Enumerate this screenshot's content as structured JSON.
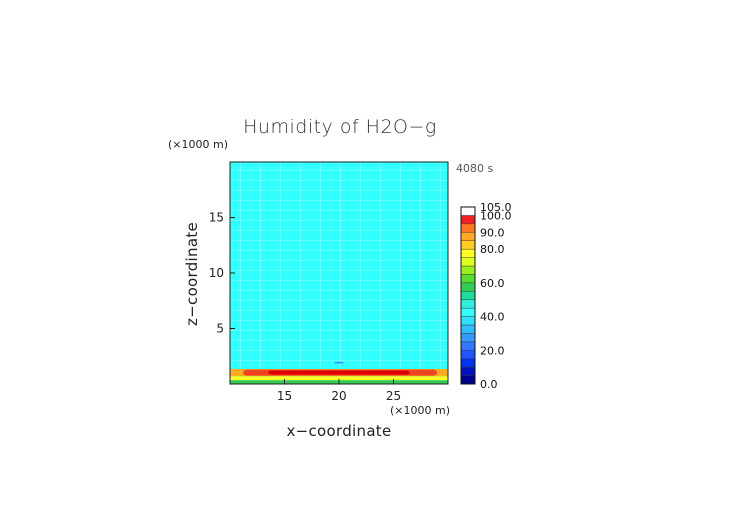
{
  "chart_data": {
    "type": "heatmap",
    "title": "Humidity of H2O−g",
    "timestamp": "4080 s",
    "xlabel": "x−coordinate",
    "ylabel": "z−coordinate",
    "x_unit": "(×1000 m)",
    "y_unit": "(×1000 m)",
    "xlim": [
      10,
      30
    ],
    "ylim": [
      0,
      20
    ],
    "x_ticks": [
      "15",
      "20",
      "25"
    ],
    "x_tick_values": [
      15,
      20,
      25
    ],
    "y_ticks": [
      "5",
      "10",
      "15"
    ],
    "y_tick_values": [
      5,
      10,
      15
    ],
    "background_value": 42,
    "field_bands": [
      {
        "z_bottom": 0.0,
        "z_top": 0.35,
        "x_start": 10,
        "x_end": 30,
        "value": 55,
        "color": "#33cc55"
      },
      {
        "z_bottom": 0.35,
        "z_top": 0.7,
        "x_start": 10,
        "x_end": 30,
        "value": 70,
        "color": "#ffff22"
      },
      {
        "z_bottom": 0.7,
        "z_top": 1.35,
        "x_start": 10,
        "x_end": 30,
        "value": 82,
        "color": "#ffaa22"
      },
      {
        "z_bottom": 0.75,
        "z_top": 1.3,
        "x_start": 11.2,
        "x_end": 29.0,
        "value": 92,
        "color": "#ee4422"
      },
      {
        "z_bottom": 0.85,
        "z_top": 1.2,
        "x_start": 13.5,
        "x_end": 26.5,
        "value": 100,
        "color": "#dd0000"
      },
      {
        "z_bottom": 1.85,
        "z_top": 2.0,
        "x_start": 19.6,
        "x_end": 20.4,
        "value": 30,
        "color": "#3399ff"
      }
    ],
    "colorbar": {
      "min": 0,
      "max": 105,
      "labels": [
        "105.0",
        "100.0",
        "90.0",
        "80.0",
        "60.0",
        "40.0",
        "20.0",
        "0.0"
      ],
      "label_values": [
        105,
        100,
        90,
        80,
        60,
        40,
        20,
        0
      ],
      "levels": [
        {
          "from": 0,
          "to": 5,
          "color": "#00008b"
        },
        {
          "from": 5,
          "to": 10,
          "color": "#0011bb"
        },
        {
          "from": 10,
          "to": 15,
          "color": "#0033ee"
        },
        {
          "from": 15,
          "to": 20,
          "color": "#2255ff"
        },
        {
          "from": 20,
          "to": 25,
          "color": "#3377ff"
        },
        {
          "from": 25,
          "to": 30,
          "color": "#3399ff"
        },
        {
          "from": 30,
          "to": 35,
          "color": "#33bbff"
        },
        {
          "from": 35,
          "to": 40,
          "color": "#33ddff"
        },
        {
          "from": 40,
          "to": 45,
          "color": "#33ffff"
        },
        {
          "from": 45,
          "to": 50,
          "color": "#33eedd"
        },
        {
          "from": 50,
          "to": 55,
          "color": "#22dd99"
        },
        {
          "from": 55,
          "to": 60,
          "color": "#33cc55"
        },
        {
          "from": 60,
          "to": 65,
          "color": "#55dd33"
        },
        {
          "from": 65,
          "to": 70,
          "color": "#99ee22"
        },
        {
          "from": 70,
          "to": 75,
          "color": "#ddff22"
        },
        {
          "from": 75,
          "to": 80,
          "color": "#ffff22"
        },
        {
          "from": 80,
          "to": 85,
          "color": "#ffcc22"
        },
        {
          "from": 85,
          "to": 90,
          "color": "#ffaa22"
        },
        {
          "from": 90,
          "to": 95,
          "color": "#ff7722"
        },
        {
          "from": 95,
          "to": 100,
          "color": "#ee2222"
        },
        {
          "from": 100,
          "to": 105,
          "color": "#ffffff"
        }
      ]
    }
  }
}
